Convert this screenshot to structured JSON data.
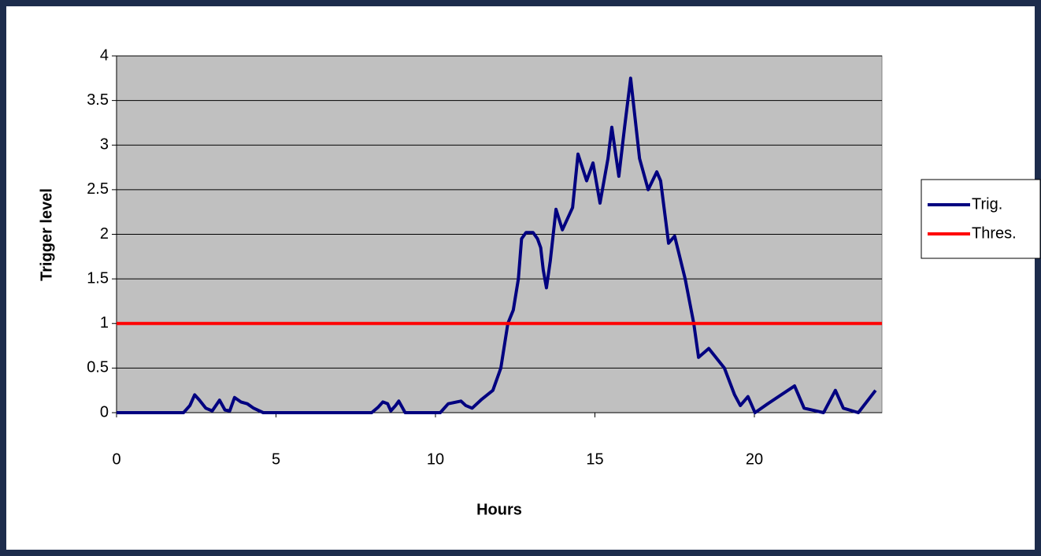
{
  "chart_data": {
    "type": "line",
    "xlabel": "Hours",
    "ylabel": "Trigger level",
    "xlim": [
      0,
      24
    ],
    "xticks": [
      0,
      5,
      10,
      15,
      20
    ],
    "ylim": [
      0,
      4
    ],
    "yticks": [
      0,
      0.5,
      1,
      1.5,
      2,
      2.5,
      3,
      3.5,
      4
    ],
    "grid": true,
    "legend": "right",
    "series": [
      {
        "name": "Trig.",
        "color": "#000080",
        "x": [
          0,
          2.1,
          2.3,
          2.45,
          2.6,
          2.8,
          3.0,
          3.23,
          3.4,
          3.55,
          3.7,
          3.9,
          4.1,
          4.3,
          4.6,
          8.0,
          8.2,
          8.35,
          8.5,
          8.6,
          8.75,
          8.85,
          9.05,
          10.15,
          10.4,
          10.8,
          10.95,
          11.15,
          11.45,
          11.8,
          12.05,
          12.27,
          12.44,
          12.6,
          12.7,
          12.84,
          13.06,
          13.2,
          13.3,
          13.38,
          13.48,
          13.6,
          13.78,
          13.98,
          14.3,
          14.47,
          14.74,
          14.94,
          15.16,
          15.41,
          15.53,
          15.75,
          15.93,
          16.12,
          16.4,
          16.67,
          16.94,
          17.06,
          17.31,
          17.5,
          17.83,
          18.1,
          18.25,
          18.57,
          19.06,
          19.38,
          19.56,
          19.8,
          20.02,
          20.42,
          21.26,
          21.56,
          22.17,
          22.54,
          22.79,
          23.26,
          23.8
        ],
        "values": [
          0,
          0,
          0.08,
          0.2,
          0.14,
          0.05,
          0.02,
          0.14,
          0.03,
          0.02,
          0.17,
          0.12,
          0.1,
          0.05,
          0,
          0,
          0.06,
          0.12,
          0.1,
          0.02,
          0.08,
          0.13,
          0,
          0,
          0.1,
          0.13,
          0.08,
          0.05,
          0.15,
          0.25,
          0.5,
          1.0,
          1.15,
          1.5,
          1.95,
          2.02,
          2.02,
          1.95,
          1.85,
          1.6,
          1.4,
          1.7,
          2.28,
          2.05,
          2.3,
          2.9,
          2.6,
          2.8,
          2.35,
          2.85,
          3.2,
          2.65,
          3.2,
          3.75,
          2.85,
          2.5,
          2.7,
          2.6,
          1.9,
          1.98,
          1.5,
          1.0,
          0.62,
          0.72,
          0.5,
          0.2,
          0.08,
          0.18,
          0.0,
          0.1,
          0.3,
          0.05,
          0,
          0.25,
          0.05,
          0,
          0.25
        ]
      },
      {
        "name": "Thres.",
        "color": "#ff0000",
        "x": [
          0,
          24
        ],
        "values": [
          1,
          1
        ]
      }
    ]
  }
}
